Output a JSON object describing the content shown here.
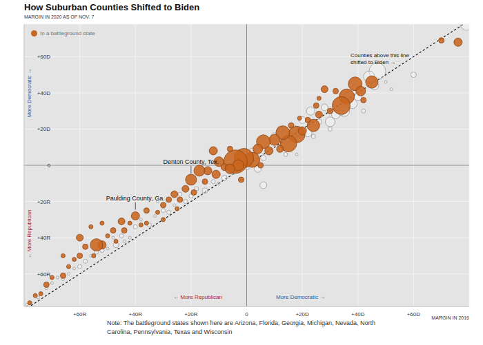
{
  "chart_data": {
    "type": "scatter",
    "title": "How Suburban Counties Shifted to Biden",
    "y_label": "MARGIN IN 2020 AS OF NOV. 7",
    "x_label": "MARGIN IN 2016",
    "x_direction_labels": [
      "← More Republican",
      "More Democratic →"
    ],
    "y_direction_labels": [
      "More Democratic →",
      "← More Republican"
    ],
    "diagonal_label": "Counties above this line shifted to Biden →",
    "point_labels": [
      {
        "text": "Denton County, Tex.",
        "x": -20,
        "y": -8
      },
      {
        "text": "Paulding County, Ga.",
        "x": -40,
        "y": -28
      }
    ],
    "note": "Note: The battleground states shown here are Arizona, Florida, Georgia, Michigan, Nevada, North Carolina, Pennsylvania, Texas and Wisconsin",
    "xlim": [
      -80,
      80
    ],
    "ylim": [
      -78,
      78
    ],
    "xticks": [
      {
        "value": -60,
        "label": "+60R"
      },
      {
        "value": -40,
        "label": "+40R"
      },
      {
        "value": -20,
        "label": "+20R"
      },
      0,
      {
        "value": 20,
        "label": "+20D"
      },
      {
        "value": 40,
        "label": "+40D"
      },
      {
        "value": 60,
        "label": "+60D"
      }
    ],
    "yticks": [
      {
        "value": -60,
        "label": "+60R"
      },
      {
        "value": -40,
        "label": "+40R"
      },
      {
        "value": -20,
        "label": "+20R"
      },
      0,
      {
        "value": 20,
        "label": "+20D"
      },
      {
        "value": 40,
        "label": "+40D"
      },
      {
        "value": 60,
        "label": "+60D"
      }
    ],
    "grid": true,
    "legend": "top-left",
    "marker": "circle",
    "series": [
      {
        "color": "#ffffff",
        "x": [
          79,
          60,
          50,
          47,
          44,
          46,
          40,
          38,
          35,
          32,
          30,
          28,
          26,
          23,
          22,
          20,
          19,
          17,
          14,
          12,
          10,
          6,
          6,
          4,
          2,
          0,
          -2,
          -5,
          -8,
          -10,
          -12,
          -15,
          -18,
          -20,
          -22,
          -24,
          -26,
          -28,
          -30,
          -33,
          -35,
          -38,
          -40,
          -42,
          -45,
          -47,
          -50,
          -52,
          -54,
          -56,
          -58,
          -60,
          -62,
          -64,
          -66,
          -68,
          -70,
          -72,
          -75,
          -79,
          18,
          24,
          30,
          34,
          42,
          52,
          14,
          -32,
          -48,
          -44
        ],
        "values": [
          78,
          50,
          46,
          52,
          49,
          44,
          38,
          34,
          30,
          28,
          24,
          32,
          24,
          30,
          18,
          25,
          18,
          20,
          14,
          20,
          16,
          -11,
          4,
          -2,
          8,
          -1,
          3,
          -4,
          -7,
          -10,
          -9,
          -14,
          -13,
          -17,
          -20,
          -16,
          -22,
          -26,
          -25,
          -28,
          -33,
          -30,
          -34,
          -40,
          -39,
          -44,
          -46,
          -47,
          -48,
          -50,
          -53,
          -56,
          -57,
          -60,
          -63,
          -62,
          -65,
          -68,
          -73,
          -77,
          6,
          16,
          20,
          29,
          30,
          42,
          6,
          -20,
          -40,
          -42
        ],
        "size": [
          81,
          16,
          4,
          144,
          64,
          36,
          36,
          49,
          64,
          36,
          49,
          25,
          16,
          36,
          36,
          25,
          25,
          36,
          25,
          16,
          25,
          25,
          16,
          25,
          16,
          16,
          16,
          9,
          16,
          4,
          9,
          16,
          9,
          9,
          9,
          9,
          4,
          9,
          9,
          4,
          9,
          4,
          9,
          4,
          9,
          16,
          4,
          9,
          9,
          4,
          9,
          9,
          4,
          4,
          4,
          4,
          4,
          4,
          4,
          4,
          4,
          9,
          9,
          16,
          9,
          4,
          9,
          4,
          4,
          4
        ]
      },
      {
        "name": "In a battleground state",
        "color": "#c8651f",
        "x": [
          76,
          70,
          45,
          39,
          41,
          36,
          34,
          32,
          26,
          25,
          26,
          24,
          22,
          19,
          18,
          15,
          13,
          10,
          6,
          8,
          4,
          2,
          -1,
          -4,
          -3,
          -8,
          -6,
          -12,
          -10,
          -14,
          -17,
          -20,
          -22,
          -19,
          -26,
          -24,
          -28,
          -30,
          -25,
          -32,
          -36,
          -40,
          -38,
          -42,
          -45,
          -44,
          -48,
          -50,
          -47,
          -52,
          -54,
          -58,
          -55,
          -60,
          -62,
          -64,
          -66,
          -70,
          -72,
          -74,
          -76,
          -78,
          -56,
          -52,
          -36,
          -30,
          -15,
          -11,
          28,
          20,
          12,
          16,
          30,
          42,
          -6,
          -2,
          5,
          -60,
          -66
        ],
        "values": [
          68,
          69,
          46,
          45,
          41,
          38,
          33,
          41,
          37,
          33,
          28,
          22,
          25,
          26,
          17,
          12,
          18,
          14,
          13,
          8,
          9,
          3,
          4,
          2,
          0,
          -1,
          9,
          8,
          2,
          -3,
          -3,
          -8,
          -13,
          -15,
          -16,
          -19,
          -19,
          -22,
          -24,
          -26,
          -25,
          -28,
          -33,
          -32,
          -31,
          -36,
          -36,
          -39,
          -42,
          -44,
          -44,
          -45,
          -50,
          -50,
          -52,
          -56,
          -61,
          -62,
          -66,
          -71,
          -72,
          -76,
          -34,
          -32,
          -32,
          -30,
          -9,
          -5,
          42,
          19,
          9,
          22,
          30,
          36,
          -2,
          -8,
          0,
          -40,
          -50
        ],
        "size": [
          36,
          16,
          81,
          100,
          49,
          121,
          169,
          16,
          9,
          16,
          25,
          81,
          16,
          9,
          144,
          144,
          100,
          64,
          100,
          36,
          49,
          121,
          196,
          289,
          64,
          25,
          16,
          36,
          49,
          36,
          64,
          64,
          25,
          16,
          25,
          16,
          16,
          16,
          9,
          9,
          16,
          36,
          9,
          9,
          25,
          16,
          16,
          9,
          9,
          36,
          81,
          16,
          9,
          16,
          9,
          9,
          16,
          9,
          16,
          9,
          9,
          9,
          9,
          9,
          9,
          9,
          16,
          36,
          25,
          36,
          25,
          16,
          16,
          16,
          49,
          16,
          16,
          25,
          9
        ]
      }
    ]
  }
}
